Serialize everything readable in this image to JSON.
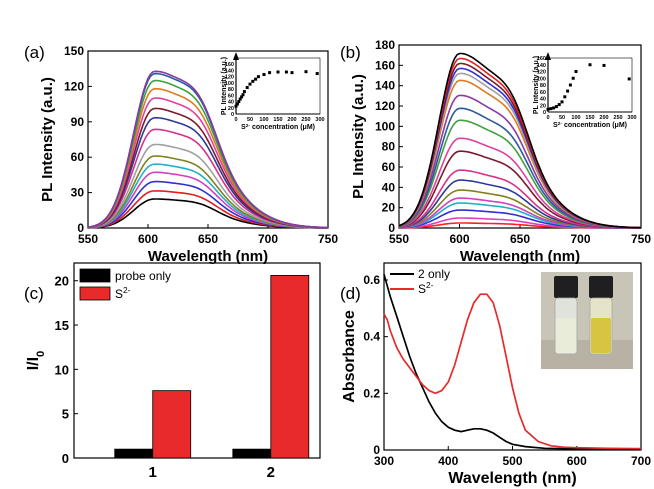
{
  "colors": {
    "top_bar": "#e3e8cf"
  },
  "chart_data": [
    {
      "panel": "(a)",
      "type": "line",
      "xlabel": "Wavelength (nm)",
      "ylabel": "PL Intensity (a.u.)",
      "xlim": [
        550,
        750
      ],
      "ylim": [
        0,
        150
      ],
      "xticks": [
        550,
        600,
        650,
        700,
        750
      ],
      "yticks": [
        0,
        30,
        60,
        90,
        120,
        150
      ],
      "peak_x": 605,
      "series": [
        {
          "color": "#000000",
          "peak": 25
        },
        {
          "color": "#e02020",
          "peak": 32
        },
        {
          "color": "#3030d0",
          "peak": 40
        },
        {
          "color": "#d040c0",
          "peak": 48
        },
        {
          "color": "#20b0c8",
          "peak": 55
        },
        {
          "color": "#808020",
          "peak": 62
        },
        {
          "color": "#a0a0a0",
          "peak": 72
        },
        {
          "color": "#d8308a",
          "peak": 85
        },
        {
          "color": "#2a3a9a",
          "peak": 95
        },
        {
          "color": "#7a1a2a",
          "peak": 103
        },
        {
          "color": "#e040a0",
          "peak": 112
        },
        {
          "color": "#e07a20",
          "peak": 120
        },
        {
          "color": "#40a040",
          "peak": 127
        },
        {
          "color": "#2a5aa0",
          "peak": 133
        },
        {
          "color": "#8a3aa0",
          "peak": 135
        }
      ],
      "inset": {
        "type": "scatter",
        "xlabel": "S2- concentration (μM)",
        "ylabel": "PL Intensity (a.u.)",
        "xlim": [
          0,
          300
        ],
        "ylim": [
          0,
          180
        ],
        "xticks": [
          0,
          50,
          100,
          150,
          200,
          250,
          300
        ],
        "yticks": [
          0,
          20,
          40,
          60,
          80,
          100,
          120,
          140,
          160
        ],
        "x": [
          0,
          5,
          10,
          15,
          20,
          25,
          30,
          40,
          50,
          60,
          70,
          80,
          100,
          120,
          150,
          180,
          200,
          250,
          290
        ],
        "y": [
          25,
          32,
          40,
          48,
          55,
          62,
          72,
          85,
          96,
          105,
          112,
          120,
          127,
          133,
          135,
          135,
          133,
          136,
          130
        ]
      }
    },
    {
      "panel": "(b)",
      "type": "line",
      "xlabel": "Wavelength (nm)",
      "ylabel": "PL Intensity (a.u.)",
      "xlim": [
        550,
        750
      ],
      "ylim": [
        0,
        180
      ],
      "xticks": [
        550,
        600,
        650,
        700,
        750
      ],
      "yticks": [
        0,
        20,
        40,
        60,
        80,
        100,
        120,
        140,
        160,
        180
      ],
      "peak_x": 600,
      "series": [
        {
          "color": "#ff2020",
          "peak": 5
        },
        {
          "color": "#e040c0",
          "peak": 10
        },
        {
          "color": "#3030d0",
          "peak": 18
        },
        {
          "color": "#20b0c8",
          "peak": 25
        },
        {
          "color": "#d040c0",
          "peak": 30
        },
        {
          "color": "#808020",
          "peak": 38
        },
        {
          "color": "#2a3a9a",
          "peak": 48
        },
        {
          "color": "#d8308a",
          "peak": 58
        },
        {
          "color": "#7a1a2a",
          "peak": 77
        },
        {
          "color": "#e040a0",
          "peak": 90
        },
        {
          "color": "#40a040",
          "peak": 108
        },
        {
          "color": "#2a5aa0",
          "peak": 120
        },
        {
          "color": "#8a3aa0",
          "peak": 133
        },
        {
          "color": "#e07a20",
          "peak": 148
        },
        {
          "color": "#a0a0a0",
          "peak": 155
        },
        {
          "color": "#3030d0",
          "peak": 160
        },
        {
          "color": "#7a1a2a",
          "peak": 165
        },
        {
          "color": "#e02020",
          "peak": 170
        },
        {
          "color": "#000000",
          "peak": 175
        }
      ],
      "inset": {
        "type": "scatter",
        "xlabel": "S2- concentration (μM)",
        "ylabel": "PL Intensity (a.u.)",
        "xlim": [
          0,
          300
        ],
        "ylim": [
          0,
          160
        ],
        "xticks": [
          0,
          50,
          100,
          150,
          200,
          250,
          300
        ],
        "yticks": [
          0,
          20,
          40,
          60,
          80,
          100,
          120,
          140,
          160
        ],
        "x": [
          0,
          10,
          20,
          30,
          40,
          50,
          60,
          70,
          80,
          90,
          100,
          150,
          200,
          290
        ],
        "y": [
          8,
          10,
          12,
          16,
          22,
          30,
          45,
          62,
          80,
          100,
          120,
          140,
          138,
          98
        ]
      }
    },
    {
      "panel": "(c)",
      "type": "bar",
      "ylabel": "I/I0",
      "categories": [
        "1",
        "2"
      ],
      "ylim": [
        0,
        22
      ],
      "yticks": [
        0,
        5,
        10,
        15,
        20
      ],
      "legend_position": "top-left",
      "series": [
        {
          "name": "probe only",
          "color": "#000000",
          "values": [
            1.0,
            1.0
          ]
        },
        {
          "name": "S2-",
          "color": "#e82a2a",
          "values": [
            7.6,
            20.6
          ]
        }
      ]
    },
    {
      "panel": "(d)",
      "type": "line",
      "xlabel": "Wavelength (nm)",
      "ylabel": "Absorbance",
      "xlim": [
        300,
        700
      ],
      "ylim": [
        0,
        0.66
      ],
      "xticks": [
        300,
        400,
        500,
        600,
        700
      ],
      "yticks": [
        0.0,
        0.2,
        0.4,
        0.6
      ],
      "legend_position": "top-left",
      "series": [
        {
          "name": "2 only",
          "color": "#000000",
          "x": [
            300,
            305,
            310,
            320,
            330,
            340,
            350,
            360,
            370,
            380,
            390,
            400,
            410,
            420,
            430,
            440,
            450,
            460,
            470,
            480,
            490,
            500,
            520,
            550,
            600,
            650,
            700
          ],
          "y": [
            0.62,
            0.58,
            0.54,
            0.47,
            0.4,
            0.33,
            0.27,
            0.22,
            0.17,
            0.13,
            0.1,
            0.08,
            0.07,
            0.065,
            0.07,
            0.075,
            0.075,
            0.07,
            0.06,
            0.045,
            0.03,
            0.02,
            0.012,
            0.006,
            0.004,
            0.003,
            0.003
          ]
        },
        {
          "name": "S2-",
          "color": "#e82a2a",
          "x": [
            300,
            305,
            310,
            320,
            330,
            340,
            350,
            360,
            370,
            380,
            390,
            400,
            410,
            420,
            430,
            440,
            450,
            460,
            470,
            480,
            490,
            500,
            510,
            520,
            540,
            560,
            580,
            600,
            650,
            700
          ],
          "y": [
            0.48,
            0.46,
            0.42,
            0.36,
            0.32,
            0.29,
            0.26,
            0.23,
            0.21,
            0.2,
            0.21,
            0.24,
            0.3,
            0.38,
            0.46,
            0.52,
            0.55,
            0.55,
            0.52,
            0.44,
            0.33,
            0.22,
            0.13,
            0.07,
            0.03,
            0.015,
            0.01,
            0.008,
            0.006,
            0.005
          ]
        }
      ]
    }
  ]
}
